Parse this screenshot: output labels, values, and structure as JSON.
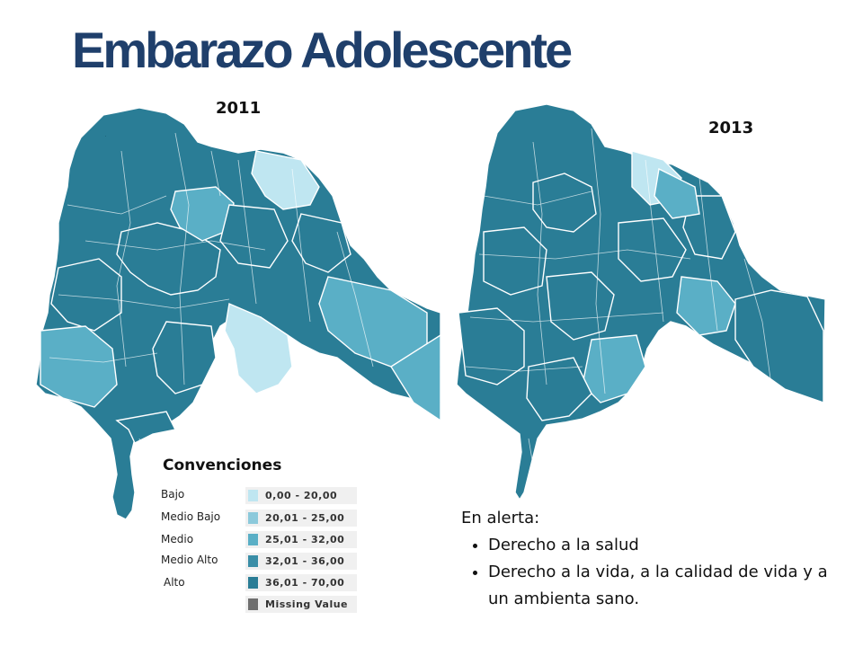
{
  "slide": {
    "title": "Embarazo Adolescente"
  },
  "maps": {
    "left_year": "2011",
    "right_year": "2013",
    "left_shading": [
      "dark",
      "dark",
      "medium",
      "dark",
      "light",
      "dark",
      "dark",
      "medium",
      "light",
      "dark",
      "medium",
      "dark",
      "medium"
    ],
    "right_shading": [
      "dark",
      "dark",
      "light",
      "dark",
      "dark",
      "dark",
      "dark",
      "medium",
      "dark",
      "medium",
      "dark",
      "dark",
      "medium"
    ]
  },
  "legend": {
    "title": "Convenciones",
    "items": [
      {
        "label": "Bajo",
        "range": "0,00 - 20,00",
        "color": "#bfe6f1"
      },
      {
        "label": "Medio Bajo",
        "range": "20,01 - 25,00",
        "color": "#8cc9db"
      },
      {
        "label": "Medio",
        "range": "25,01 - 32,00",
        "color": "#5aafc6"
      },
      {
        "label": "Medio Alto",
        "range": "32,01 - 36,00",
        "color": "#3a8ea7"
      },
      {
        "label": "Alto",
        "range": "36,01 - 70,00",
        "color": "#2a7d96"
      },
      {
        "label": "",
        "range": "Missing Value",
        "color": "#6f6f6f"
      }
    ]
  },
  "alert": {
    "heading": "En alerta:",
    "items": [
      "Derecho a la salud",
      "Derecho a la vida, a la calidad de vida y a un ambienta sano."
    ]
  },
  "colors": {
    "title": "#1f3f6b",
    "dark": "#2a7d96",
    "medium": "#5aafc6",
    "light": "#bfe6f1"
  }
}
